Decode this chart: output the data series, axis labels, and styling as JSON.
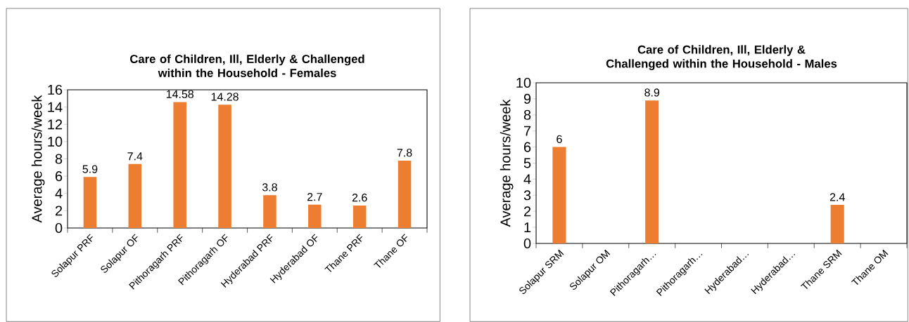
{
  "chart_data": [
    {
      "type": "bar",
      "title": "Care of Children, Ill, Elderly & Challenged within the Household - Females",
      "ylabel": "Average hours/week",
      "categories": [
        "Solapur PRF",
        "Solapur OF",
        "Pithoragarh PRF",
        "Pithoragarh OF",
        "Hyderabad PRF",
        "Hyderabad OF",
        "Thane PRF",
        "Thane OF"
      ],
      "values": [
        5.9,
        7.4,
        14.58,
        14.28,
        3.8,
        2.7,
        2.6,
        7.8
      ],
      "color": "#ed7d31",
      "ylim": [
        0,
        16
      ],
      "yticks": [
        0,
        2,
        4,
        6,
        8,
        10,
        12,
        14,
        16
      ],
      "data_labels": true,
      "grid": false
    },
    {
      "type": "bar",
      "title": "Care of Children, Ill, Elderly & Challenged within the Household - Males",
      "ylabel": "Average hours/week",
      "categories": [
        "Solapur SRM",
        "Solapur OM",
        "Pithoragarh…",
        "Pithoragarh…",
        "Hyderabad…",
        "Hyderabad…",
        "Thane SRM",
        "Thane OM"
      ],
      "values": [
        6,
        null,
        8.9,
        null,
        null,
        null,
        2.4,
        null
      ],
      "color": "#ed7d31",
      "ylim": [
        0,
        10
      ],
      "yticks": [
        0,
        1,
        2,
        3,
        4,
        5,
        6,
        7,
        8,
        9,
        10
      ],
      "data_labels": true,
      "grid": false
    }
  ]
}
